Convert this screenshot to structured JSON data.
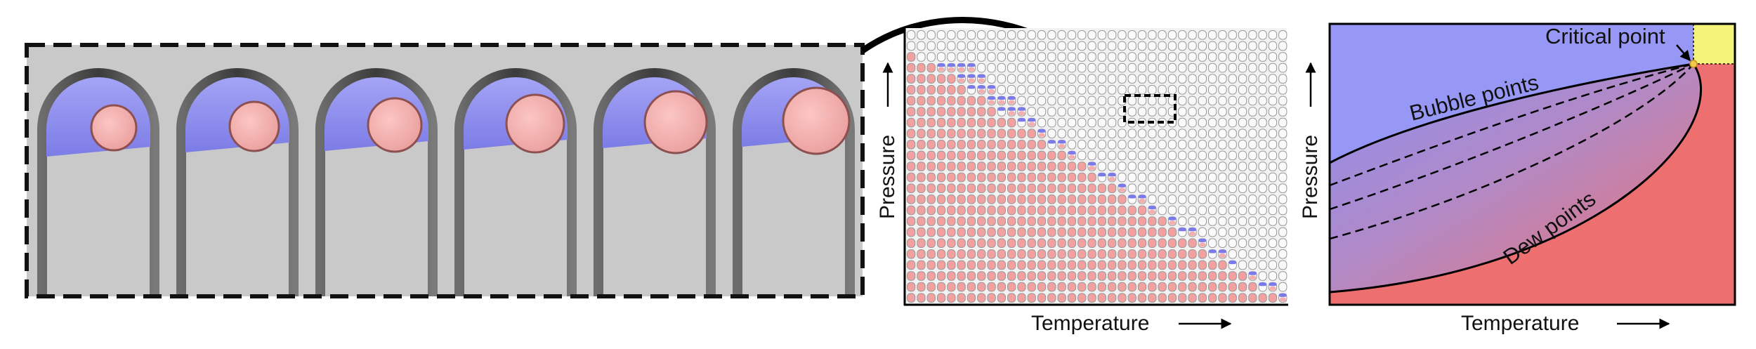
{
  "micrographs": {
    "count": 6,
    "phase_colors": {
      "gas": "#8f8ff2",
      "liquid": "#f5aaa8",
      "background": "#c8c8c8"
    }
  },
  "middle_plot": {
    "xlabel": "Temperature",
    "ylabel": "Pressure",
    "grid_columns": 38,
    "grid_rows": 25,
    "colors": {
      "gas": "#7a7ae8",
      "liquid": "#f2a0a0",
      "cell_border": "#9a9a9a"
    }
  },
  "phase_diagram": {
    "xlabel": "Temperature",
    "ylabel": "Pressure",
    "annotations": {
      "critical_point": "Critical point",
      "bubble_points": "Bubble points",
      "dew_points": "Dew points"
    },
    "colors": {
      "gas_region": "#9797f6",
      "liquid_region": "#ee6f6f",
      "supercritical": "#f4f47a",
      "critical_marker": "#f2c94c"
    }
  }
}
